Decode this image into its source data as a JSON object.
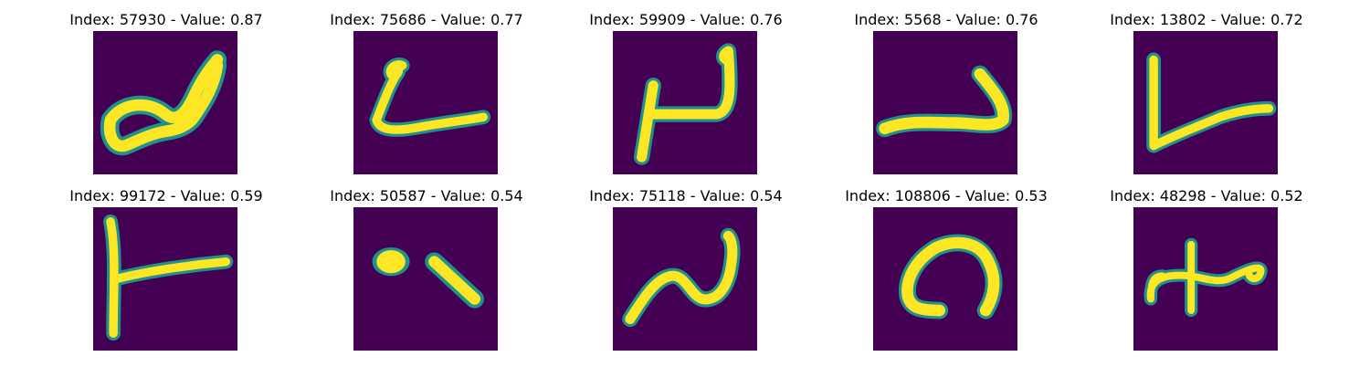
{
  "figure": {
    "colors": {
      "background": "#440154",
      "stroke": "#fde725",
      "edge": "#21918c"
    },
    "panels": [
      {
        "title": "Index: 57930 - Value: 0.87",
        "index": 57930,
        "value": 0.87,
        "icon": "handwritten-glyph-image"
      },
      {
        "title": "Index: 75686 - Value: 0.77",
        "index": 75686,
        "value": 0.77,
        "icon": "handwritten-glyph-image"
      },
      {
        "title": "Index: 59909 - Value: 0.76",
        "index": 59909,
        "value": 0.76,
        "icon": "handwritten-glyph-image"
      },
      {
        "title": "Index: 5568 - Value: 0.76",
        "index": 5568,
        "value": 0.76,
        "icon": "handwritten-glyph-image"
      },
      {
        "title": "Index: 13802 - Value: 0.72",
        "index": 13802,
        "value": 0.72,
        "icon": "handwritten-glyph-image"
      },
      {
        "title": "Index: 99172 - Value: 0.59",
        "index": 99172,
        "value": 0.59,
        "icon": "handwritten-glyph-image"
      },
      {
        "title": "Index: 50587 - Value: 0.54",
        "index": 50587,
        "value": 0.54,
        "icon": "handwritten-glyph-image"
      },
      {
        "title": "Index: 75118 - Value: 0.54",
        "index": 75118,
        "value": 0.54,
        "icon": "handwritten-glyph-image"
      },
      {
        "title": "Index: 108806 - Value: 0.53",
        "index": 108806,
        "value": 0.53,
        "icon": "handwritten-glyph-image"
      },
      {
        "title": "Index: 48298 - Value: 0.52",
        "index": 48298,
        "value": 0.52,
        "icon": "handwritten-glyph-image"
      }
    ]
  }
}
